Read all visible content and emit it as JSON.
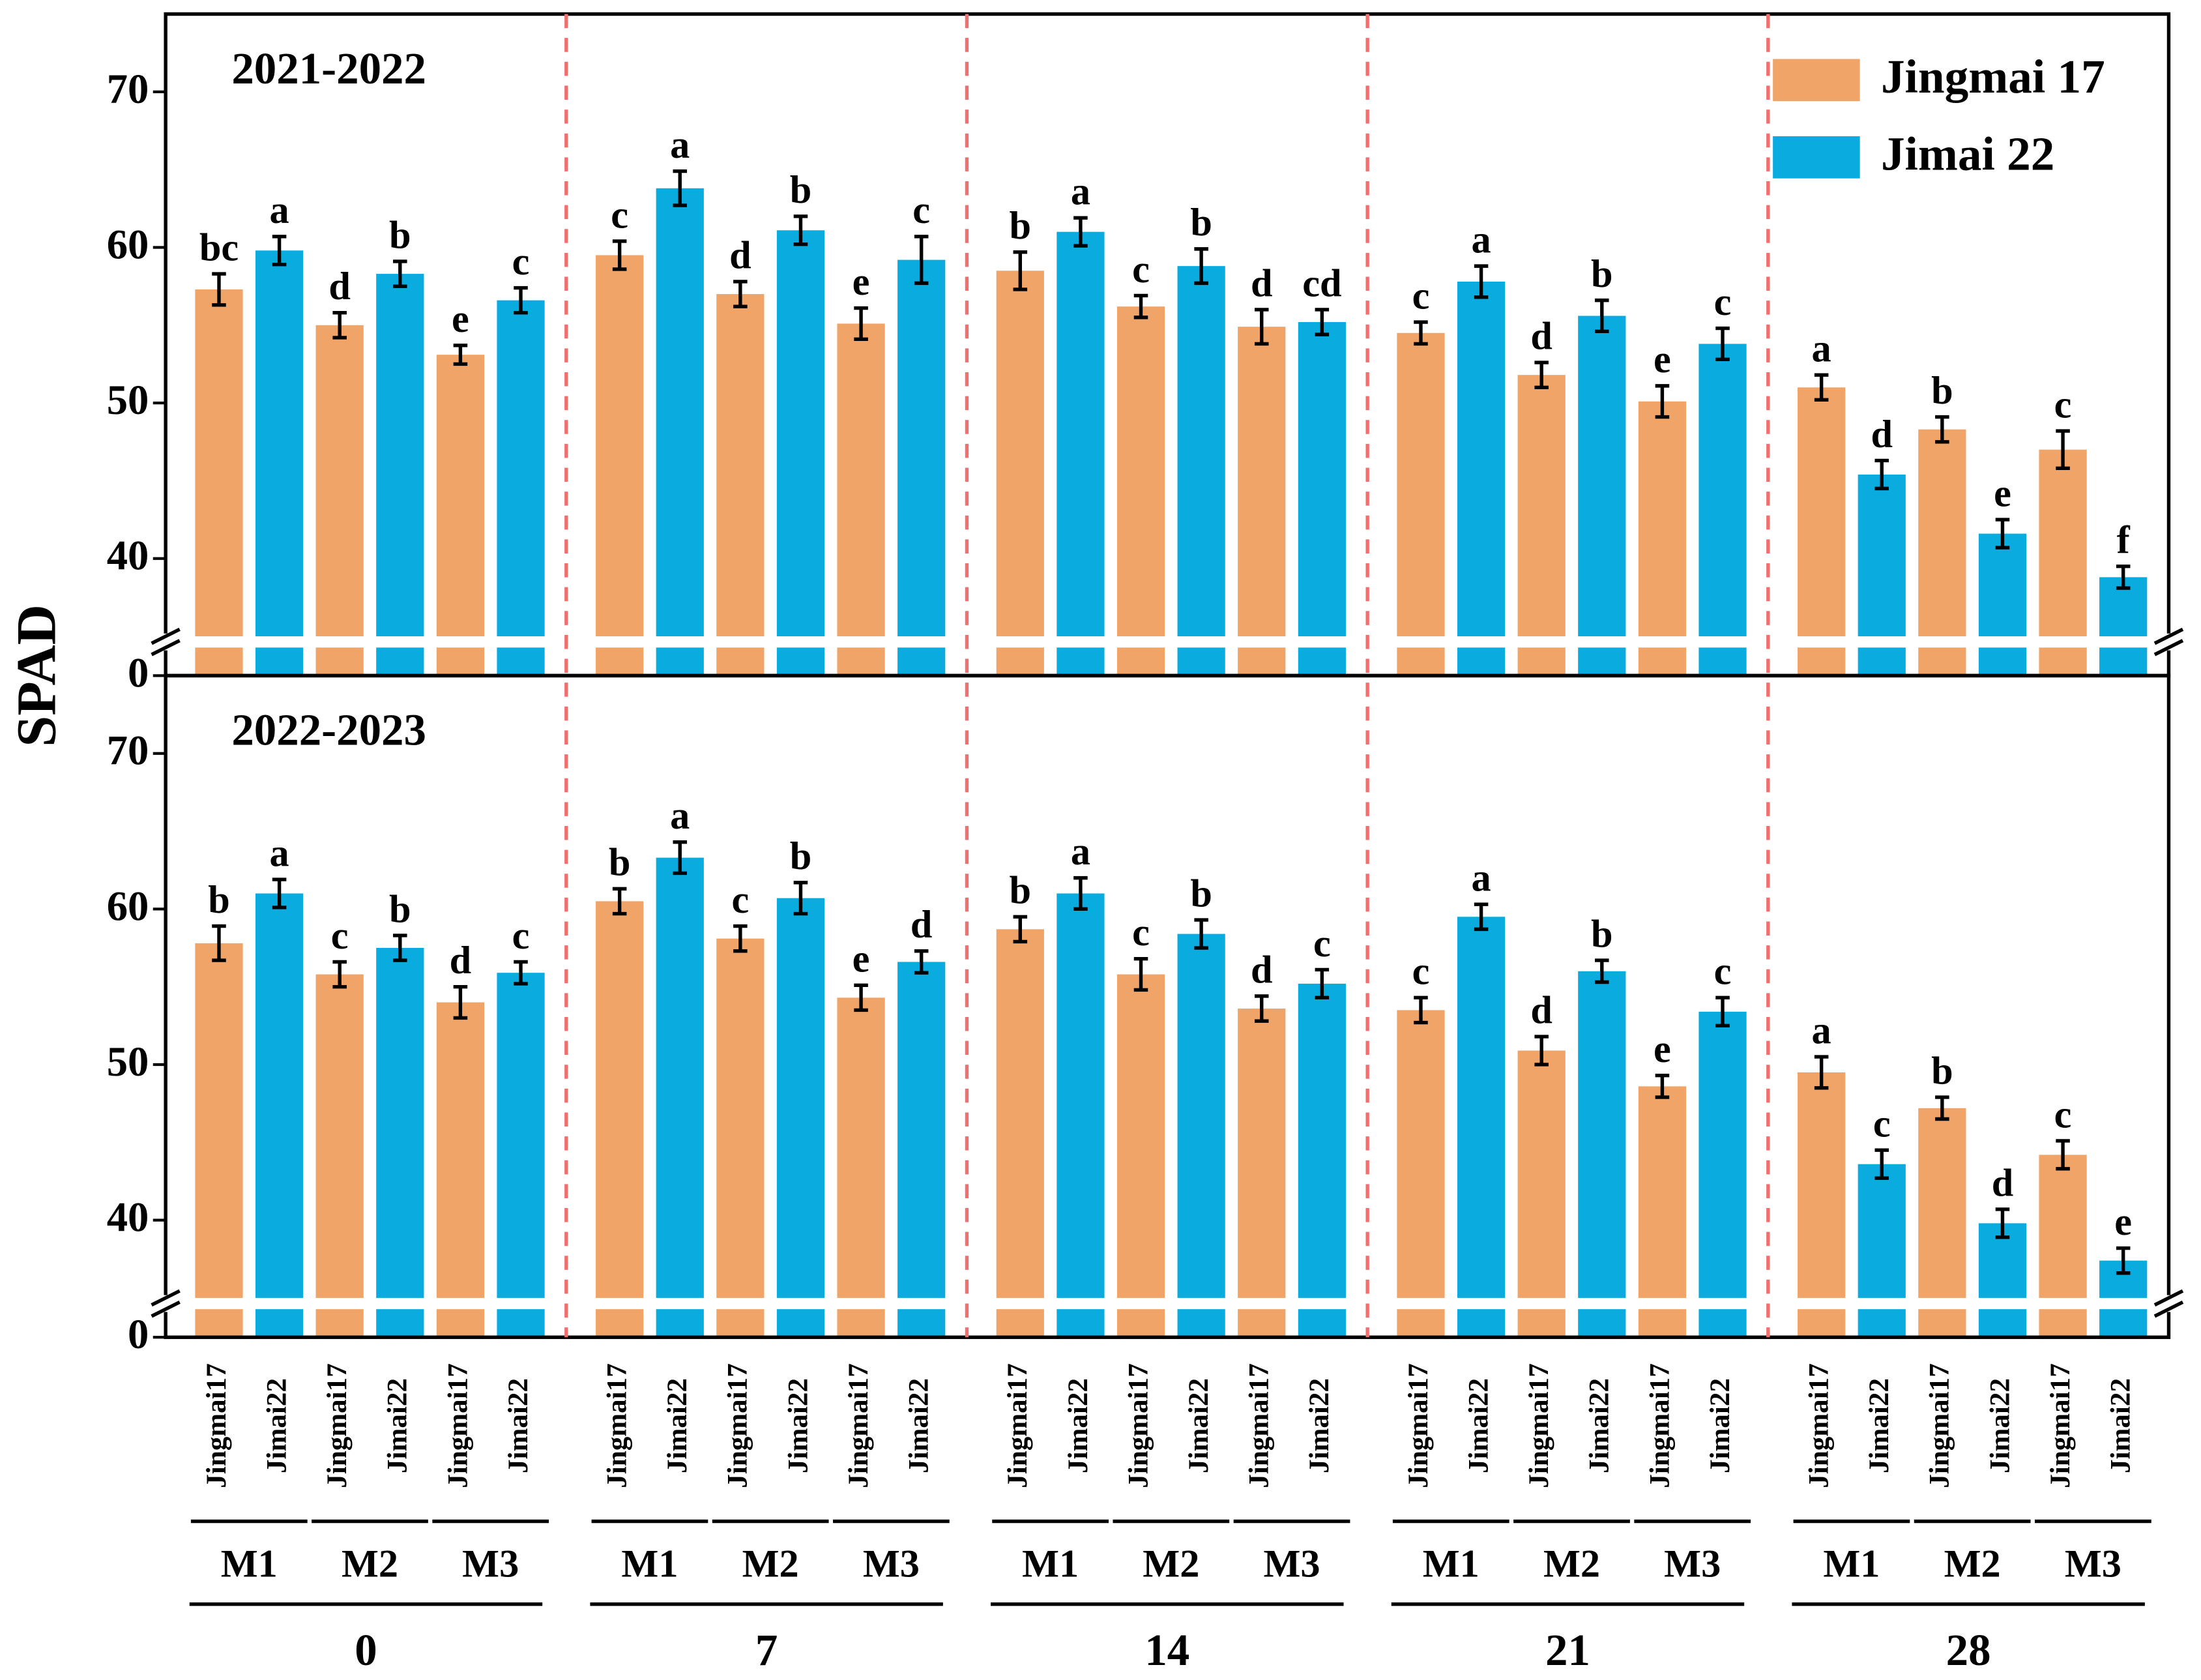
{
  "chart_data": {
    "type": "bar",
    "y_label": "SPAD",
    "ylim": [
      0,
      75
    ],
    "ybreak": [
      0,
      35
    ],
    "yticks": [
      0,
      40,
      50,
      60,
      70
    ],
    "series": [
      {
        "name": "Jingmai 17",
        "color": "#F0A468"
      },
      {
        "name": "Jimai 22",
        "color": "#0AACE0"
      }
    ],
    "days": [
      "0",
      "7",
      "14",
      "21",
      "28"
    ],
    "treatments": [
      "M1",
      "M2",
      "M3",
      "M1",
      "M2",
      "M3",
      "M1",
      "M2",
      "M3",
      "M1",
      "M2",
      "M3",
      "M1",
      "M2",
      "M3"
    ],
    "bar_labels": [
      "Jingmai17",
      "Jimai22",
      "Jingmai17",
      "Jimai22",
      "Jingmai17",
      "Jimai22",
      "Jingmai17",
      "Jimai22",
      "Jingmai17",
      "Jimai22",
      "Jingmai17",
      "Jimai22",
      "Jingmai17",
      "Jimai22",
      "Jingmai17",
      "Jimai22",
      "Jingmai17",
      "Jimai22",
      "Jingmai17",
      "Jimai22",
      "Jingmai17",
      "Jimai22",
      "Jingmai17",
      "Jimai22",
      "Jingmai17",
      "Jimai22",
      "Jingmai17",
      "Jimai22",
      "Jingmai17",
      "Jimai22"
    ],
    "panels": [
      {
        "title": "2021-2022",
        "series": [
          {
            "values": [
              57.3,
              55.0,
              53.1,
              59.5,
              57.0,
              55.1,
              58.5,
              56.2,
              54.9,
              54.5,
              51.8,
              50.1,
              51.0,
              48.3,
              47.0
            ],
            "errors": [
              1.0,
              0.8,
              0.6,
              0.9,
              0.8,
              1.0,
              1.2,
              0.7,
              1.1,
              0.7,
              0.8,
              1.0,
              0.8,
              0.8,
              1.2
            ],
            "letters": [
              "bc",
              "d",
              "e",
              "c",
              "d",
              "e",
              "b",
              "c",
              "d",
              "c",
              "d",
              "e",
              "a",
              "b",
              "c"
            ]
          },
          {
            "values": [
              59.8,
              58.3,
              56.6,
              63.8,
              61.1,
              59.2,
              61.0,
              58.8,
              55.2,
              57.8,
              55.6,
              53.8,
              45.4,
              41.6,
              38.8
            ],
            "errors": [
              0.9,
              0.8,
              0.8,
              1.1,
              0.9,
              1.5,
              0.9,
              1.1,
              0.8,
              1.0,
              1.0,
              1.0,
              0.9,
              0.9,
              0.7
            ],
            "letters": [
              "a",
              "b",
              "c",
              "a",
              "b",
              "c",
              "a",
              "b",
              "cd",
              "a",
              "b",
              "c",
              "d",
              "e",
              "f"
            ]
          }
        ]
      },
      {
        "title": "2022-2023",
        "series": [
          {
            "values": [
              57.8,
              55.8,
              54.0,
              60.5,
              58.1,
              54.3,
              58.7,
              55.8,
              53.6,
              53.5,
              50.9,
              48.6,
              49.5,
              47.2,
              44.2
            ],
            "errors": [
              1.1,
              0.8,
              1.0,
              0.8,
              0.8,
              0.8,
              0.8,
              1.0,
              0.8,
              0.8,
              0.9,
              0.7,
              1.0,
              0.7,
              0.9
            ],
            "letters": [
              "b",
              "c",
              "d",
              "b",
              "c",
              "e",
              "b",
              "c",
              "d",
              "c",
              "d",
              "e",
              "a",
              "b",
              "c"
            ]
          },
          {
            "values": [
              61.0,
              57.5,
              55.9,
              63.3,
              60.7,
              56.6,
              61.0,
              58.4,
              55.2,
              59.5,
              56.0,
              53.4,
              43.6,
              39.8,
              37.4
            ],
            "errors": [
              0.9,
              0.8,
              0.7,
              1.0,
              1.0,
              0.7,
              1.0,
              0.9,
              0.9,
              0.8,
              0.7,
              0.9,
              0.9,
              0.9,
              0.8
            ],
            "letters": [
              "a",
              "b",
              "c",
              "a",
              "b",
              "d",
              "a",
              "b",
              "c",
              "a",
              "b",
              "c",
              "c",
              "d",
              "e"
            ]
          }
        ]
      }
    ]
  }
}
